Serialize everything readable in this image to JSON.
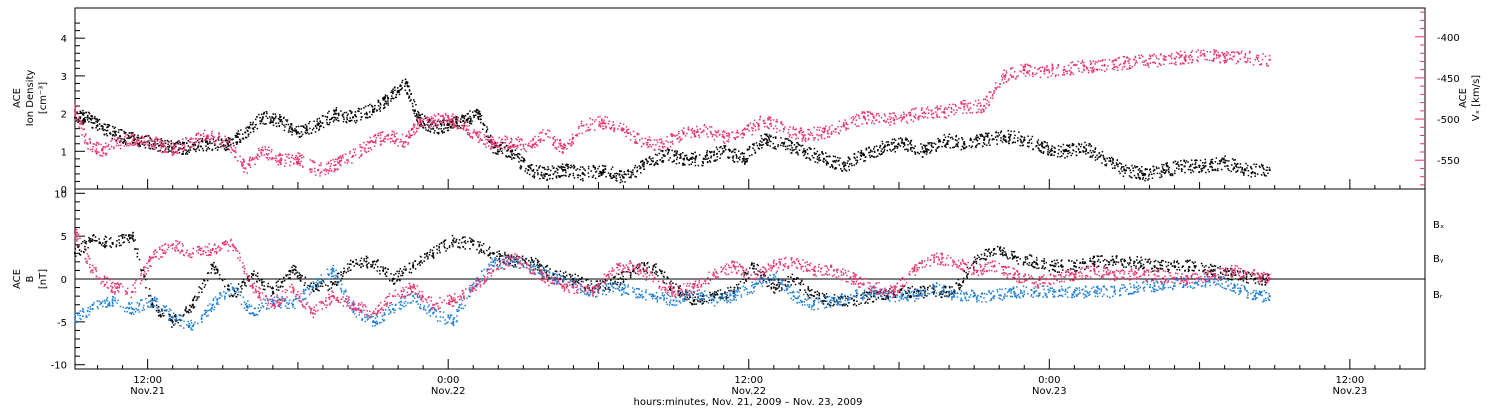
{
  "colors": {
    "density": "#000000",
    "speed": "#e8336b",
    "bx": "#000000",
    "by": "#1f7fd6",
    "bz": "#e8336b"
  },
  "xaxis": {
    "title": "hours:minutes, Nov. 21, 2009 – Nov. 23, 2009",
    "ticks": [
      {
        "hour": 12,
        "time": "12:00",
        "date": "Nov.21"
      },
      {
        "hour": 24,
        "time": "0:00",
        "date": "Nov.22"
      },
      {
        "hour": 36,
        "time": "12:00",
        "date": "Nov.22"
      },
      {
        "hour": 48,
        "time": "0:00",
        "date": "Nov.23"
      },
      {
        "hour": 60,
        "time": "12:00",
        "date": "Nov.23"
      }
    ]
  },
  "chart_data": [
    {
      "type": "scatter",
      "panel": "top",
      "ylabel_left": [
        "ACE",
        "Ion Density",
        "[cm⁻³]"
      ],
      "ylabel_right": [
        "ACE",
        "Vₓ [km/s]"
      ],
      "x_range_hours": [
        9.1,
        63.0
      ],
      "ylim_left": [
        0,
        4.8
      ],
      "left_ticks": [
        0,
        1,
        2,
        3,
        4
      ],
      "ylim_right": [
        -585,
        -365
      ],
      "right_ticks": [
        -400,
        -450,
        -500,
        -550
      ],
      "right_tick_labels": [
        "-400",
        "-450",
        "-500",
        "-550"
      ],
      "series": [
        {
          "key": "density",
          "axis": "left",
          "x": [
            9.1,
            9.6,
            10.2,
            10.9,
            11.6,
            12.3,
            13.0,
            13.7,
            14.4,
            15.2,
            15.9,
            16.6,
            17.3,
            18.0,
            18.8,
            19.5,
            20.2,
            21.0,
            21.6,
            22.3,
            22.8,
            23.4,
            24.0,
            24.6,
            25.2,
            25.8,
            26.5,
            27.2,
            27.9,
            28.6,
            29.4,
            30.2,
            31.0,
            31.8,
            32.6,
            33.4,
            34.2,
            35.0,
            35.8,
            36.6,
            37.4,
            38.2,
            39.0,
            39.8,
            40.6,
            41.4,
            42.2,
            43.0,
            43.8,
            44.6,
            45.4,
            46.2,
            47.0,
            47.8,
            48.6,
            49.4,
            50.2,
            51.0,
            51.8,
            52.6,
            53.4,
            54.2,
            55.0,
            55.8,
            56.8
          ],
          "y": [
            1.9,
            1.9,
            1.6,
            1.4,
            1.3,
            1.2,
            1.1,
            1.1,
            1.2,
            1.2,
            1.5,
            1.9,
            1.8,
            1.5,
            1.7,
            2.0,
            1.9,
            2.1,
            2.4,
            2.8,
            1.9,
            1.6,
            1.7,
            1.8,
            2.0,
            1.1,
            1.0,
            0.5,
            0.4,
            0.5,
            0.4,
            0.5,
            0.3,
            0.6,
            0.9,
            0.8,
            0.8,
            1.0,
            0.8,
            1.3,
            1.2,
            1.0,
            0.8,
            0.6,
            0.9,
            1.1,
            1.2,
            1.0,
            1.3,
            1.2,
            1.3,
            1.4,
            1.3,
            1.1,
            1.0,
            1.1,
            0.8,
            0.5,
            0.4,
            0.5,
            0.6,
            0.6,
            0.7,
            0.5,
            0.5
          ]
        },
        {
          "key": "speed",
          "axis": "right",
          "x": [
            9.1,
            9.6,
            10.2,
            10.9,
            11.6,
            12.3,
            13.0,
            13.7,
            14.4,
            15.2,
            15.9,
            16.6,
            17.3,
            18.0,
            18.8,
            19.5,
            20.2,
            21.0,
            21.6,
            22.3,
            22.8,
            23.4,
            24.0,
            24.6,
            25.2,
            25.8,
            26.5,
            27.2,
            27.9,
            28.6,
            29.4,
            30.2,
            31.0,
            31.8,
            32.6,
            33.4,
            34.2,
            35.0,
            35.8,
            36.6,
            37.4,
            38.2,
            39.0,
            39.8,
            40.6,
            41.4,
            42.2,
            43.0,
            43.8,
            44.6,
            45.4,
            46.2,
            47.0,
            47.8,
            48.6,
            49.4,
            50.2,
            51.0,
            51.8,
            52.6,
            53.4,
            54.2,
            55.0,
            55.8,
            56.8
          ],
          "y": [
            -490,
            -530,
            -538,
            -528,
            -525,
            -530,
            -537,
            -528,
            -520,
            -528,
            -560,
            -538,
            -550,
            -548,
            -562,
            -556,
            -545,
            -528,
            -520,
            -528,
            -505,
            -503,
            -498,
            -508,
            -522,
            -530,
            -528,
            -532,
            -518,
            -536,
            -508,
            -504,
            -512,
            -530,
            -530,
            -518,
            -514,
            -522,
            -518,
            -502,
            -512,
            -520,
            -516,
            -508,
            -498,
            -502,
            -498,
            -492,
            -492,
            -485,
            -484,
            -448,
            -440,
            -442,
            -440,
            -436,
            -435,
            -432,
            -430,
            -428,
            -425,
            -423,
            -424,
            -425,
            -428
          ]
        }
      ]
    },
    {
      "type": "scatter",
      "panel": "bottom",
      "ylabel_left": [
        "ACE",
        "B",
        "[nT]"
      ],
      "x_range_hours": [
        9.1,
        63.0
      ],
      "ylim": [
        -10.5,
        10.5
      ],
      "ticks": [
        -10,
        -5,
        0,
        5,
        10
      ],
      "legend": [
        "Bₓ",
        "Bᵧ",
        "Bᵣ"
      ],
      "series": [
        {
          "key": "bx",
          "name": "Bₓ",
          "x": [
            9.1,
            9.8,
            10.6,
            11.4,
            12.2,
            13.0,
            13.8,
            14.6,
            15.4,
            16.2,
            17.0,
            17.8,
            18.6,
            19.4,
            20.2,
            21.0,
            21.8,
            22.6,
            23.4,
            24.2,
            25.0,
            25.8,
            26.6,
            27.4,
            28.2,
            29.0,
            29.8,
            30.6,
            31.4,
            32.2,
            33.0,
            33.8,
            34.6,
            35.4,
            36.2,
            37.0,
            37.8,
            38.6,
            39.4,
            40.2,
            41.0,
            41.8,
            42.6,
            43.4,
            44.2,
            45.0,
            45.8,
            46.6,
            47.4,
            48.2,
            49.0,
            49.8,
            50.6,
            51.4,
            52.2,
            53.0,
            53.8,
            54.6,
            55.4,
            56.2,
            56.8
          ],
          "y": [
            3,
            4.5,
            4.2,
            5.0,
            -3,
            -5,
            -3,
            1.5,
            -2,
            0.5,
            -1.5,
            1,
            -1,
            -0.5,
            2,
            2,
            0,
            1.5,
            3,
            4.5,
            4,
            3,
            2,
            2,
            0.5,
            0,
            -1,
            -0.5,
            1,
            1.5,
            -1,
            -2.5,
            -2,
            -1.5,
            1.5,
            -1,
            0,
            -2,
            -2.5,
            -2.5,
            -2,
            -1.5,
            -1.5,
            -1.5,
            -1.5,
            2,
            3.5,
            2.5,
            2,
            1.5,
            1.5,
            2,
            2,
            2,
            1.5,
            1.5,
            1.5,
            1,
            0.5,
            0,
            0
          ]
        },
        {
          "key": "by",
          "name": "Bᵧ",
          "x": [
            9.1,
            9.8,
            10.6,
            11.4,
            12.2,
            13.0,
            13.8,
            14.6,
            15.4,
            16.2,
            17.0,
            17.8,
            18.6,
            19.4,
            20.2,
            21.0,
            21.8,
            22.6,
            23.4,
            24.2,
            25.0,
            25.8,
            26.6,
            27.4,
            28.2,
            29.0,
            29.8,
            30.6,
            31.4,
            32.2,
            33.0,
            33.8,
            34.6,
            35.4,
            36.2,
            37.0,
            37.8,
            38.6,
            39.4,
            40.2,
            41.0,
            41.8,
            42.6,
            43.4,
            44.2,
            45.0,
            45.8,
            46.6,
            47.4,
            48.2,
            49.0,
            49.8,
            50.6,
            51.4,
            52.2,
            53.0,
            53.8,
            54.6,
            55.4,
            56.2,
            56.8
          ],
          "y": [
            -4.5,
            -3.5,
            -2.5,
            -3.5,
            -2.5,
            -4.5,
            -5.5,
            -3,
            -1,
            -4,
            -2.5,
            -3,
            -1,
            1,
            -3.5,
            -5,
            -3.5,
            -2,
            -4,
            -5,
            -1,
            2,
            2,
            1.5,
            0,
            -0.5,
            -1.5,
            -1,
            -1.5,
            -2,
            -2.5,
            -1.5,
            -2.5,
            -2,
            -1,
            0.5,
            -2,
            -3,
            -2.5,
            -2,
            -1.5,
            -2,
            -2,
            -1,
            -2,
            -2,
            -2,
            -1.5,
            -1.5,
            -1.5,
            -1.5,
            -1.5,
            -1.5,
            -1,
            -0.8,
            -0.5,
            -0.5,
            0,
            -1,
            -2,
            -2
          ]
        },
        {
          "key": "bz",
          "name": "Bᵣ",
          "x": [
            9.1,
            9.8,
            10.6,
            11.4,
            12.2,
            13.0,
            13.8,
            14.6,
            15.4,
            16.2,
            17.0,
            17.8,
            18.6,
            19.4,
            20.2,
            21.0,
            21.8,
            22.6,
            23.4,
            24.2,
            25.0,
            25.8,
            26.6,
            27.4,
            28.2,
            29.0,
            29.8,
            30.6,
            31.4,
            32.2,
            33.0,
            33.8,
            34.6,
            35.4,
            36.2,
            37.0,
            37.8,
            38.6,
            39.4,
            40.2,
            41.0,
            41.8,
            42.6,
            43.4,
            44.2,
            45.0,
            45.8,
            46.6,
            47.4,
            48.2,
            49.0,
            49.8,
            50.6,
            51.4,
            52.2,
            53.0,
            53.8,
            54.6,
            55.4,
            56.2,
            56.8
          ],
          "y": [
            5.5,
            1,
            -1,
            -1.5,
            2.5,
            4,
            3,
            3.5,
            4,
            -1,
            -3,
            -1,
            -4,
            -2,
            -3,
            -4,
            -2,
            -1,
            -3,
            -2.5,
            -1,
            1,
            2.5,
            1,
            -0.5,
            -1,
            -1.5,
            1,
            1.5,
            0,
            -1.5,
            -1,
            0.5,
            1.5,
            0,
            1.5,
            2,
            1,
            1,
            0,
            -1,
            -1.5,
            1,
            2.5,
            2,
            1,
            1.5,
            0.5,
            -0.5,
            0,
            0.5,
            1,
            0.5,
            0.5,
            0.5,
            0,
            0,
            0.5,
            1,
            0.5,
            0
          ]
        }
      ]
    }
  ]
}
